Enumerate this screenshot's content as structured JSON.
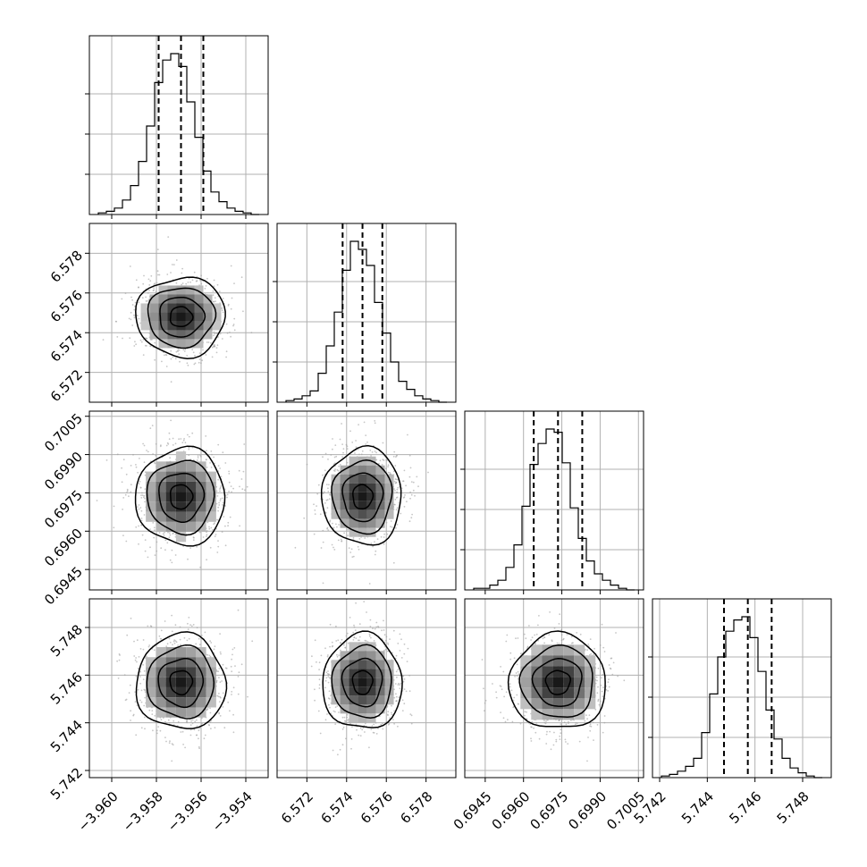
{
  "chart_data": {
    "type": "corner",
    "parameters": 4,
    "grid": true,
    "axis_ranges": [
      [
        -3.961,
        -3.953
      ],
      [
        6.5705,
        6.5795
      ],
      [
        0.6937,
        0.7007
      ],
      [
        5.7417,
        5.7492
      ]
    ],
    "ticks": [
      [
        "-3.960",
        "-3.958",
        "-3.956",
        "-3.954"
      ],
      [
        "6.572",
        "6.574",
        "6.576",
        "6.578"
      ],
      [
        "0.6945",
        "0.6960",
        "0.6975",
        "0.6990",
        "0.7005"
      ],
      [
        "5.742",
        "5.744",
        "5.746",
        "5.748"
      ]
    ],
    "tick_values": [
      [
        -3.96,
        -3.958,
        -3.956,
        -3.954
      ],
      [
        6.572,
        6.574,
        6.576,
        6.578
      ],
      [
        0.6945,
        0.696,
        0.6975,
        0.699,
        0.7005
      ],
      [
        5.742,
        5.744,
        5.746,
        5.748
      ]
    ],
    "quantiles": [
      [
        -3.9579,
        -3.9569,
        -3.9559
      ],
      [
        6.5738,
        6.5748,
        6.5758
      ],
      [
        0.6964,
        0.69735,
        0.6983
      ],
      [
        5.7447,
        5.7457,
        5.7467
      ]
    ],
    "histograms": [
      [
        1,
        2,
        4,
        9,
        18,
        33,
        55,
        82,
        96,
        100,
        92,
        70,
        48,
        27,
        14,
        8,
        4,
        2,
        1,
        0
      ],
      [
        1,
        2,
        4,
        7,
        18,
        35,
        56,
        82,
        100,
        95,
        85,
        62,
        43,
        25,
        13,
        8,
        4,
        2,
        1,
        0
      ],
      [
        1,
        1,
        3,
        6,
        14,
        28,
        52,
        78,
        91,
        100,
        98,
        79,
        51,
        32,
        18,
        10,
        6,
        3,
        1,
        0
      ],
      [
        1,
        2,
        4,
        7,
        12,
        28,
        52,
        75,
        91,
        98,
        100,
        87,
        66,
        42,
        24,
        12,
        6,
        3,
        1,
        0
      ]
    ],
    "contour_levels": [
      "0.5",
      "1.0",
      "1.5",
      "2.0"
    ],
    "colors": {
      "line": "#000000",
      "grid": "#b0b0b0",
      "point": "#a0a0a0"
    }
  }
}
